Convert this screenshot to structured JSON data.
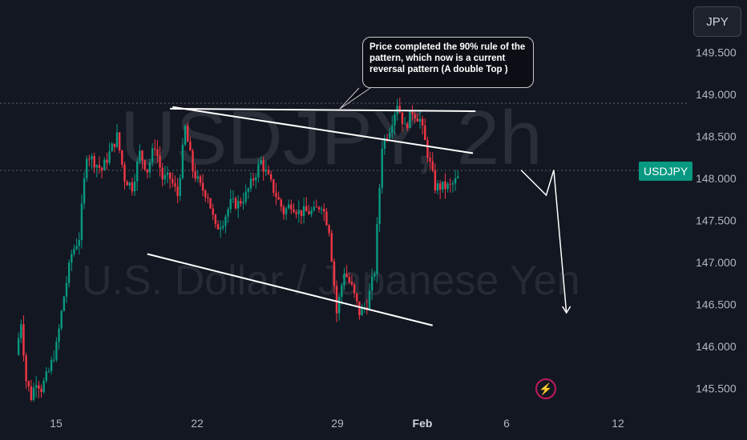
{
  "symbol_watermark": "USDJPY, 2h",
  "description_watermark": "U.S. Dollar / Japanese Yen",
  "currency_button": "JPY",
  "price_badge": "USDJPY",
  "annotation_text": "Price completed the 90% rule of the pattern, which now is a current reversal pattern (A double Top )",
  "colors": {
    "background": "#131722",
    "up": "#089981",
    "down": "#f23645",
    "drawing": "#ffffff",
    "badge": "#089981"
  },
  "icons": {
    "alert": "lightning-bolt-icon"
  },
  "chart_data": {
    "type": "candlestick",
    "symbol": "USDJPY",
    "interval": "2h",
    "y_axis": {
      "ticks": [
        "149.500",
        "149.000",
        "148.500",
        "148.000",
        "147.500",
        "147.000",
        "146.500",
        "146.000",
        "145.500"
      ],
      "range": [
        145.35,
        149.85
      ]
    },
    "x_axis": {
      "ticks": [
        "15",
        "22",
        "29",
        "Feb",
        "6",
        "12"
      ]
    },
    "horizontal_levels": [
      148.89,
      148.07
    ],
    "current_price_label": "USDJPY",
    "series_path": [
      [
        0,
        145.9
      ],
      [
        0.2,
        146.3
      ],
      [
        0.4,
        145.6
      ],
      [
        0.6,
        145.4
      ],
      [
        0.8,
        145.6
      ],
      [
        1.0,
        145.5
      ],
      [
        1.3,
        145.7
      ],
      [
        1.6,
        146.0
      ],
      [
        1.9,
        146.6
      ],
      [
        2.2,
        147.1
      ],
      [
        2.5,
        147.3
      ],
      [
        2.8,
        148.3
      ],
      [
        3.1,
        148.2
      ],
      [
        3.4,
        148.1
      ],
      [
        3.7,
        148.3
      ],
      [
        4.0,
        148.5
      ],
      [
        4.3,
        148.0
      ],
      [
        4.6,
        147.9
      ],
      [
        4.9,
        148.3
      ],
      [
        5.2,
        148.1
      ],
      [
        5.5,
        148.4
      ],
      [
        5.8,
        148.0
      ],
      [
        6.1,
        148.0
      ],
      [
        6.4,
        147.8
      ],
      [
        6.7,
        148.6
      ],
      [
        7.0,
        148.1
      ],
      [
        7.3,
        147.9
      ],
      [
        7.6,
        147.8
      ],
      [
        7.9,
        147.4
      ],
      [
        8.2,
        147.5
      ],
      [
        8.5,
        147.7
      ],
      [
        8.8,
        147.7
      ],
      [
        9.1,
        147.8
      ],
      [
        9.4,
        148.0
      ],
      [
        9.7,
        148.2
      ],
      [
        10.0,
        148.0
      ],
      [
        10.3,
        147.8
      ],
      [
        10.6,
        147.6
      ],
      [
        10.9,
        147.7
      ],
      [
        11.2,
        147.6
      ],
      [
        11.5,
        147.6
      ],
      [
        11.8,
        147.6
      ],
      [
        12.1,
        147.7
      ],
      [
        12.4,
        147.4
      ],
      [
        12.7,
        146.4
      ],
      [
        13.0,
        146.9
      ],
      [
        13.3,
        146.7
      ],
      [
        13.6,
        146.4
      ],
      [
        13.9,
        146.5
      ],
      [
        14.2,
        146.9
      ],
      [
        14.5,
        148.4
      ],
      [
        14.8,
        148.6
      ],
      [
        15.1,
        148.9
      ],
      [
        15.4,
        148.6
      ],
      [
        15.7,
        148.8
      ],
      [
        16.0,
        148.7
      ],
      [
        16.3,
        148.3
      ],
      [
        16.6,
        147.9
      ],
      [
        16.9,
        147.9
      ],
      [
        17.2,
        147.9
      ],
      [
        17.5,
        148.0
      ]
    ],
    "drawings": {
      "upper_channel": [
        [
          6.2,
          148.85
        ],
        [
          18.1,
          148.3
        ]
      ],
      "lower_channel": [
        [
          5.2,
          147.1
        ],
        [
          16.5,
          146.25
        ]
      ],
      "neckline": [
        [
          6.1,
          148.83
        ],
        [
          18.2,
          148.8
        ]
      ],
      "projection": [
        [
          20.0,
          148.1
        ],
        [
          21.0,
          147.8
        ],
        [
          21.3,
          148.1
        ],
        [
          21.8,
          146.4
        ]
      ]
    }
  }
}
